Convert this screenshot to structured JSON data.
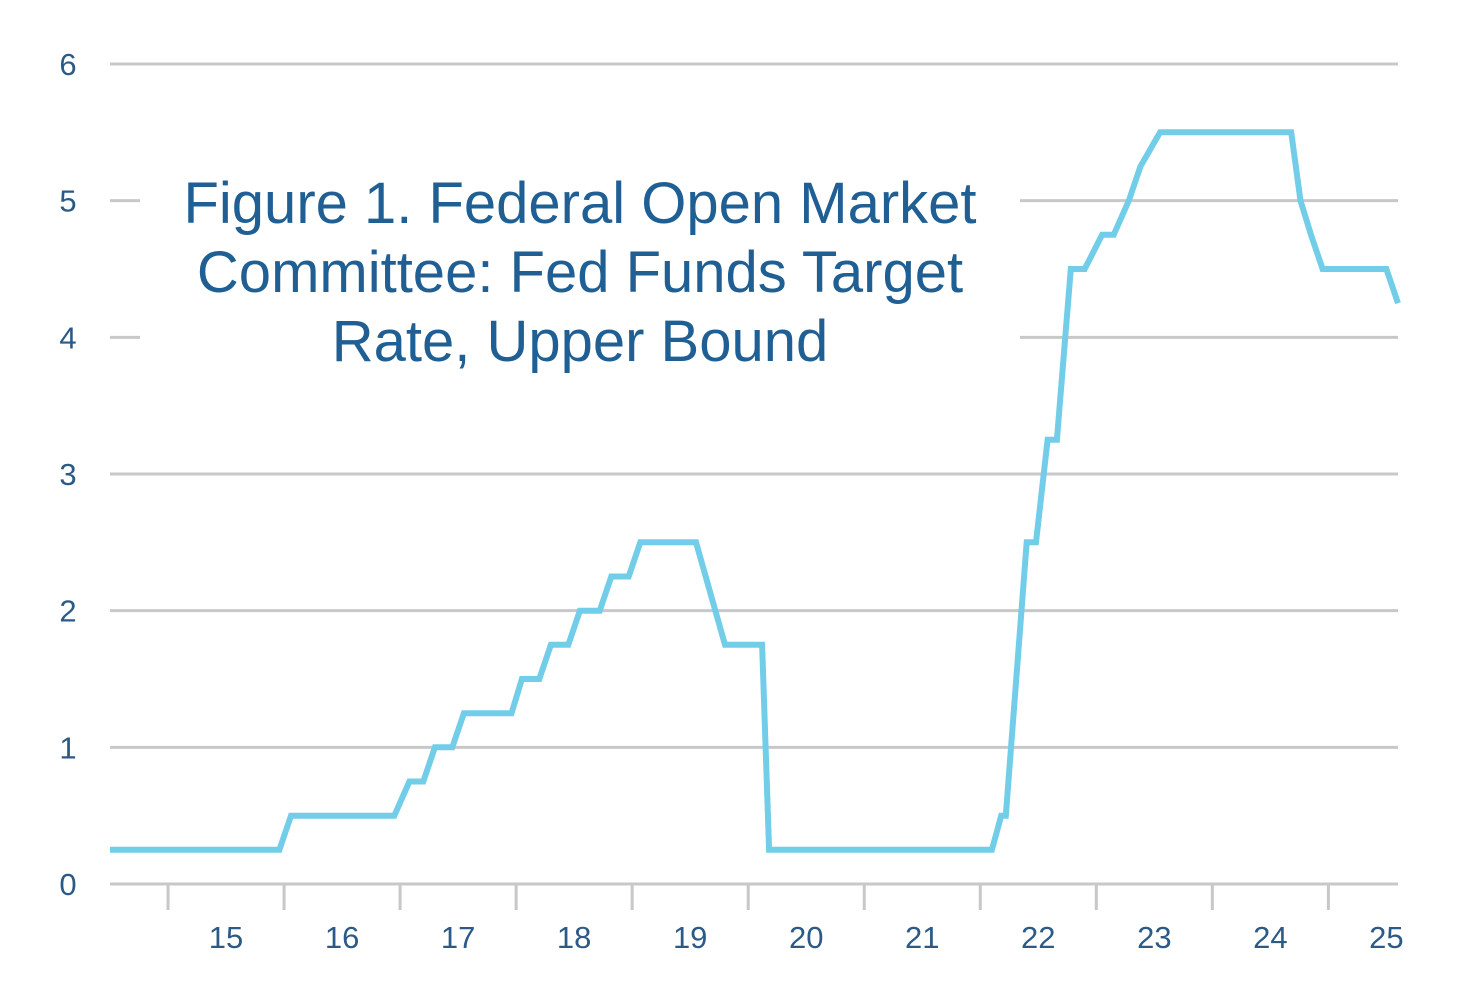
{
  "colors": {
    "line": "#72cde9",
    "grid": "#c8c8c8",
    "text": "#2b5a87",
    "title": "#1f5f93"
  },
  "chart_data": {
    "type": "line",
    "title": "Figure 1. Federal Open Market Committee: Fed Funds Target Rate, Upper Bound",
    "xlabel": "",
    "ylabel": "",
    "ylim": [
      0,
      6
    ],
    "xlim": [
      2014.5,
      2025.6
    ],
    "y_ticks": [
      "0",
      "1",
      "2",
      "3",
      "4",
      "5",
      "6"
    ],
    "x_tick_labels": [
      "15",
      "16",
      "17",
      "18",
      "19",
      "20",
      "21",
      "22",
      "23",
      "24",
      "25"
    ],
    "x_label_positions": [
      2015.5,
      2016.5,
      2017.5,
      2018.5,
      2019.5,
      2020.5,
      2021.5,
      2022.5,
      2023.5,
      2024.5,
      2025.5
    ],
    "x_tick_marks": [
      2015,
      2016,
      2017,
      2018,
      2019,
      2020,
      2021,
      2022,
      2023,
      2024,
      2025
    ],
    "grid": true,
    "legend": "none",
    "series": [
      {
        "x": [
          2014.5,
          2015.96,
          2016.06,
          2016.95,
          2017.08,
          2017.2,
          2017.3,
          2017.45,
          2017.55,
          2017.96,
          2018.05,
          2018.2,
          2018.3,
          2018.45,
          2018.55,
          2018.72,
          2018.82,
          2018.97,
          2019.07,
          2019.55,
          2019.8,
          2020.12,
          2020.18,
          2021.5,
          2022.1,
          2022.18,
          2022.22,
          2022.4,
          2022.48,
          2022.58,
          2022.66,
          2022.78,
          2022.9,
          2023.05,
          2023.15,
          2023.28,
          2023.38,
          2023.55,
          2024.68,
          2024.76,
          2024.85,
          2024.95,
          2025.1,
          2025.5,
          2025.6
        ],
        "y": [
          0.25,
          0.25,
          0.5,
          0.5,
          0.75,
          0.75,
          1.0,
          1.0,
          1.25,
          1.25,
          1.5,
          1.5,
          1.75,
          1.75,
          2.0,
          2.0,
          2.25,
          2.25,
          2.5,
          2.5,
          1.75,
          1.75,
          0.25,
          0.25,
          0.25,
          0.5,
          0.5,
          2.5,
          2.5,
          3.25,
          3.25,
          4.5,
          4.5,
          4.75,
          4.75,
          5.0,
          5.25,
          5.5,
          5.5,
          5.0,
          4.75,
          4.5,
          4.5,
          4.5,
          4.25
        ]
      }
    ]
  }
}
